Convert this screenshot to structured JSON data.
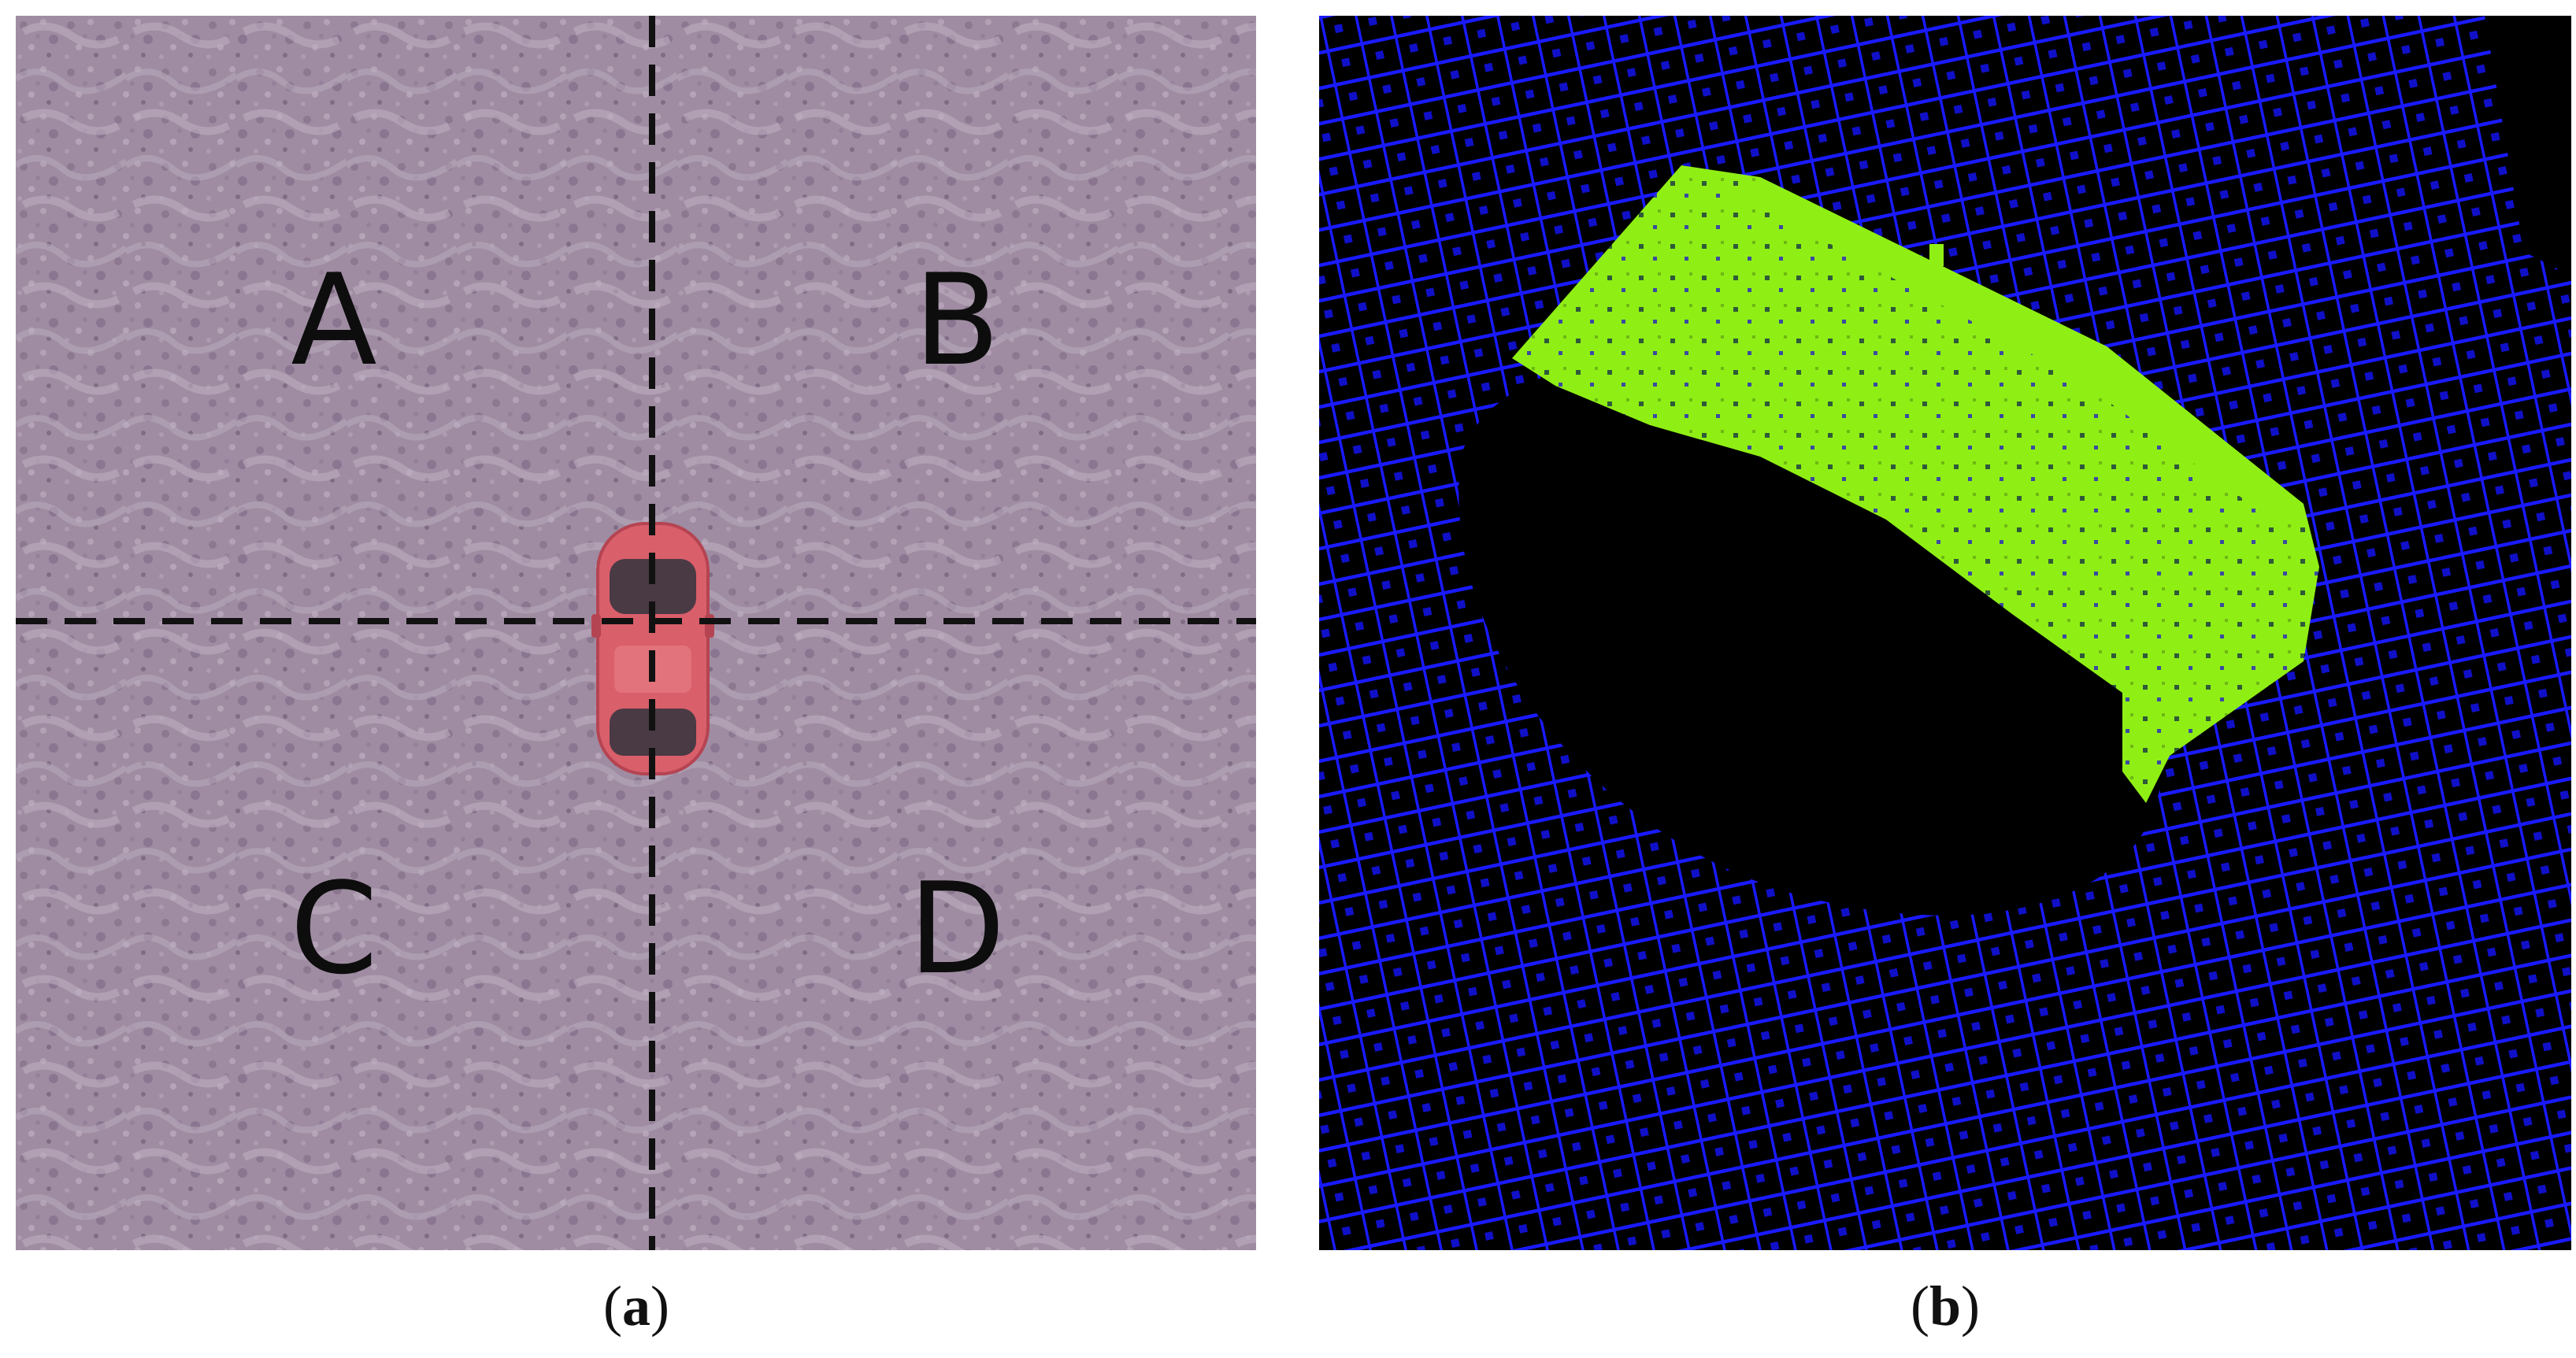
{
  "panel_a": {
    "quadrant_labels": {
      "a": "A",
      "b": "B",
      "c": "C",
      "d": "D"
    },
    "caption": {
      "open": "(",
      "letter": "a",
      "close": ")"
    },
    "colors": {
      "ground": "#9d8aa0",
      "car_body": "#d95f6b",
      "divider_lines": "#111111"
    }
  },
  "panel_b": {
    "caption": {
      "open": "(",
      "letter": "b",
      "close": ")"
    },
    "colors": {
      "background": "#000000",
      "ground_points": "#1a1aff",
      "vehicle_points": "#8fef14"
    }
  }
}
